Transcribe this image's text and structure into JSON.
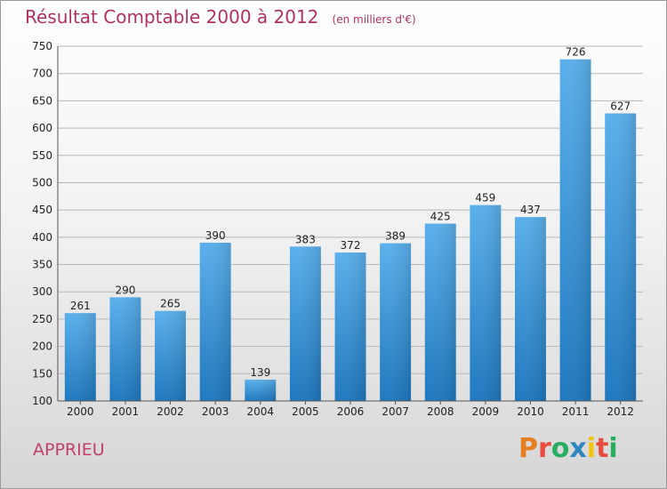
{
  "header": {
    "title": "Résultat Comptable 2000 à 2012",
    "subtitle": "(en milliers d'€)"
  },
  "footer": {
    "town": "APPRIEU",
    "logo_text": "Proxiti",
    "logo_colors": [
      "#e67e22",
      "#e74c3c",
      "#27ae60",
      "#2e86c1",
      "#f1c40f",
      "#e74c3c",
      "#27ae60"
    ]
  },
  "chart_data": {
    "type": "bar",
    "categories": [
      "2000",
      "2001",
      "2002",
      "2003",
      "2004",
      "2005",
      "2006",
      "2007",
      "2008",
      "2009",
      "2010",
      "2011",
      "2012"
    ],
    "values": [
      261,
      290,
      265,
      390,
      139,
      383,
      372,
      389,
      425,
      459,
      437,
      726,
      627
    ],
    "ylim": [
      100,
      750
    ],
    "yticks": [
      100,
      150,
      200,
      250,
      300,
      350,
      400,
      450,
      500,
      550,
      600,
      650,
      700,
      750
    ],
    "grid": true,
    "bar_color": "#3a8fd4"
  }
}
